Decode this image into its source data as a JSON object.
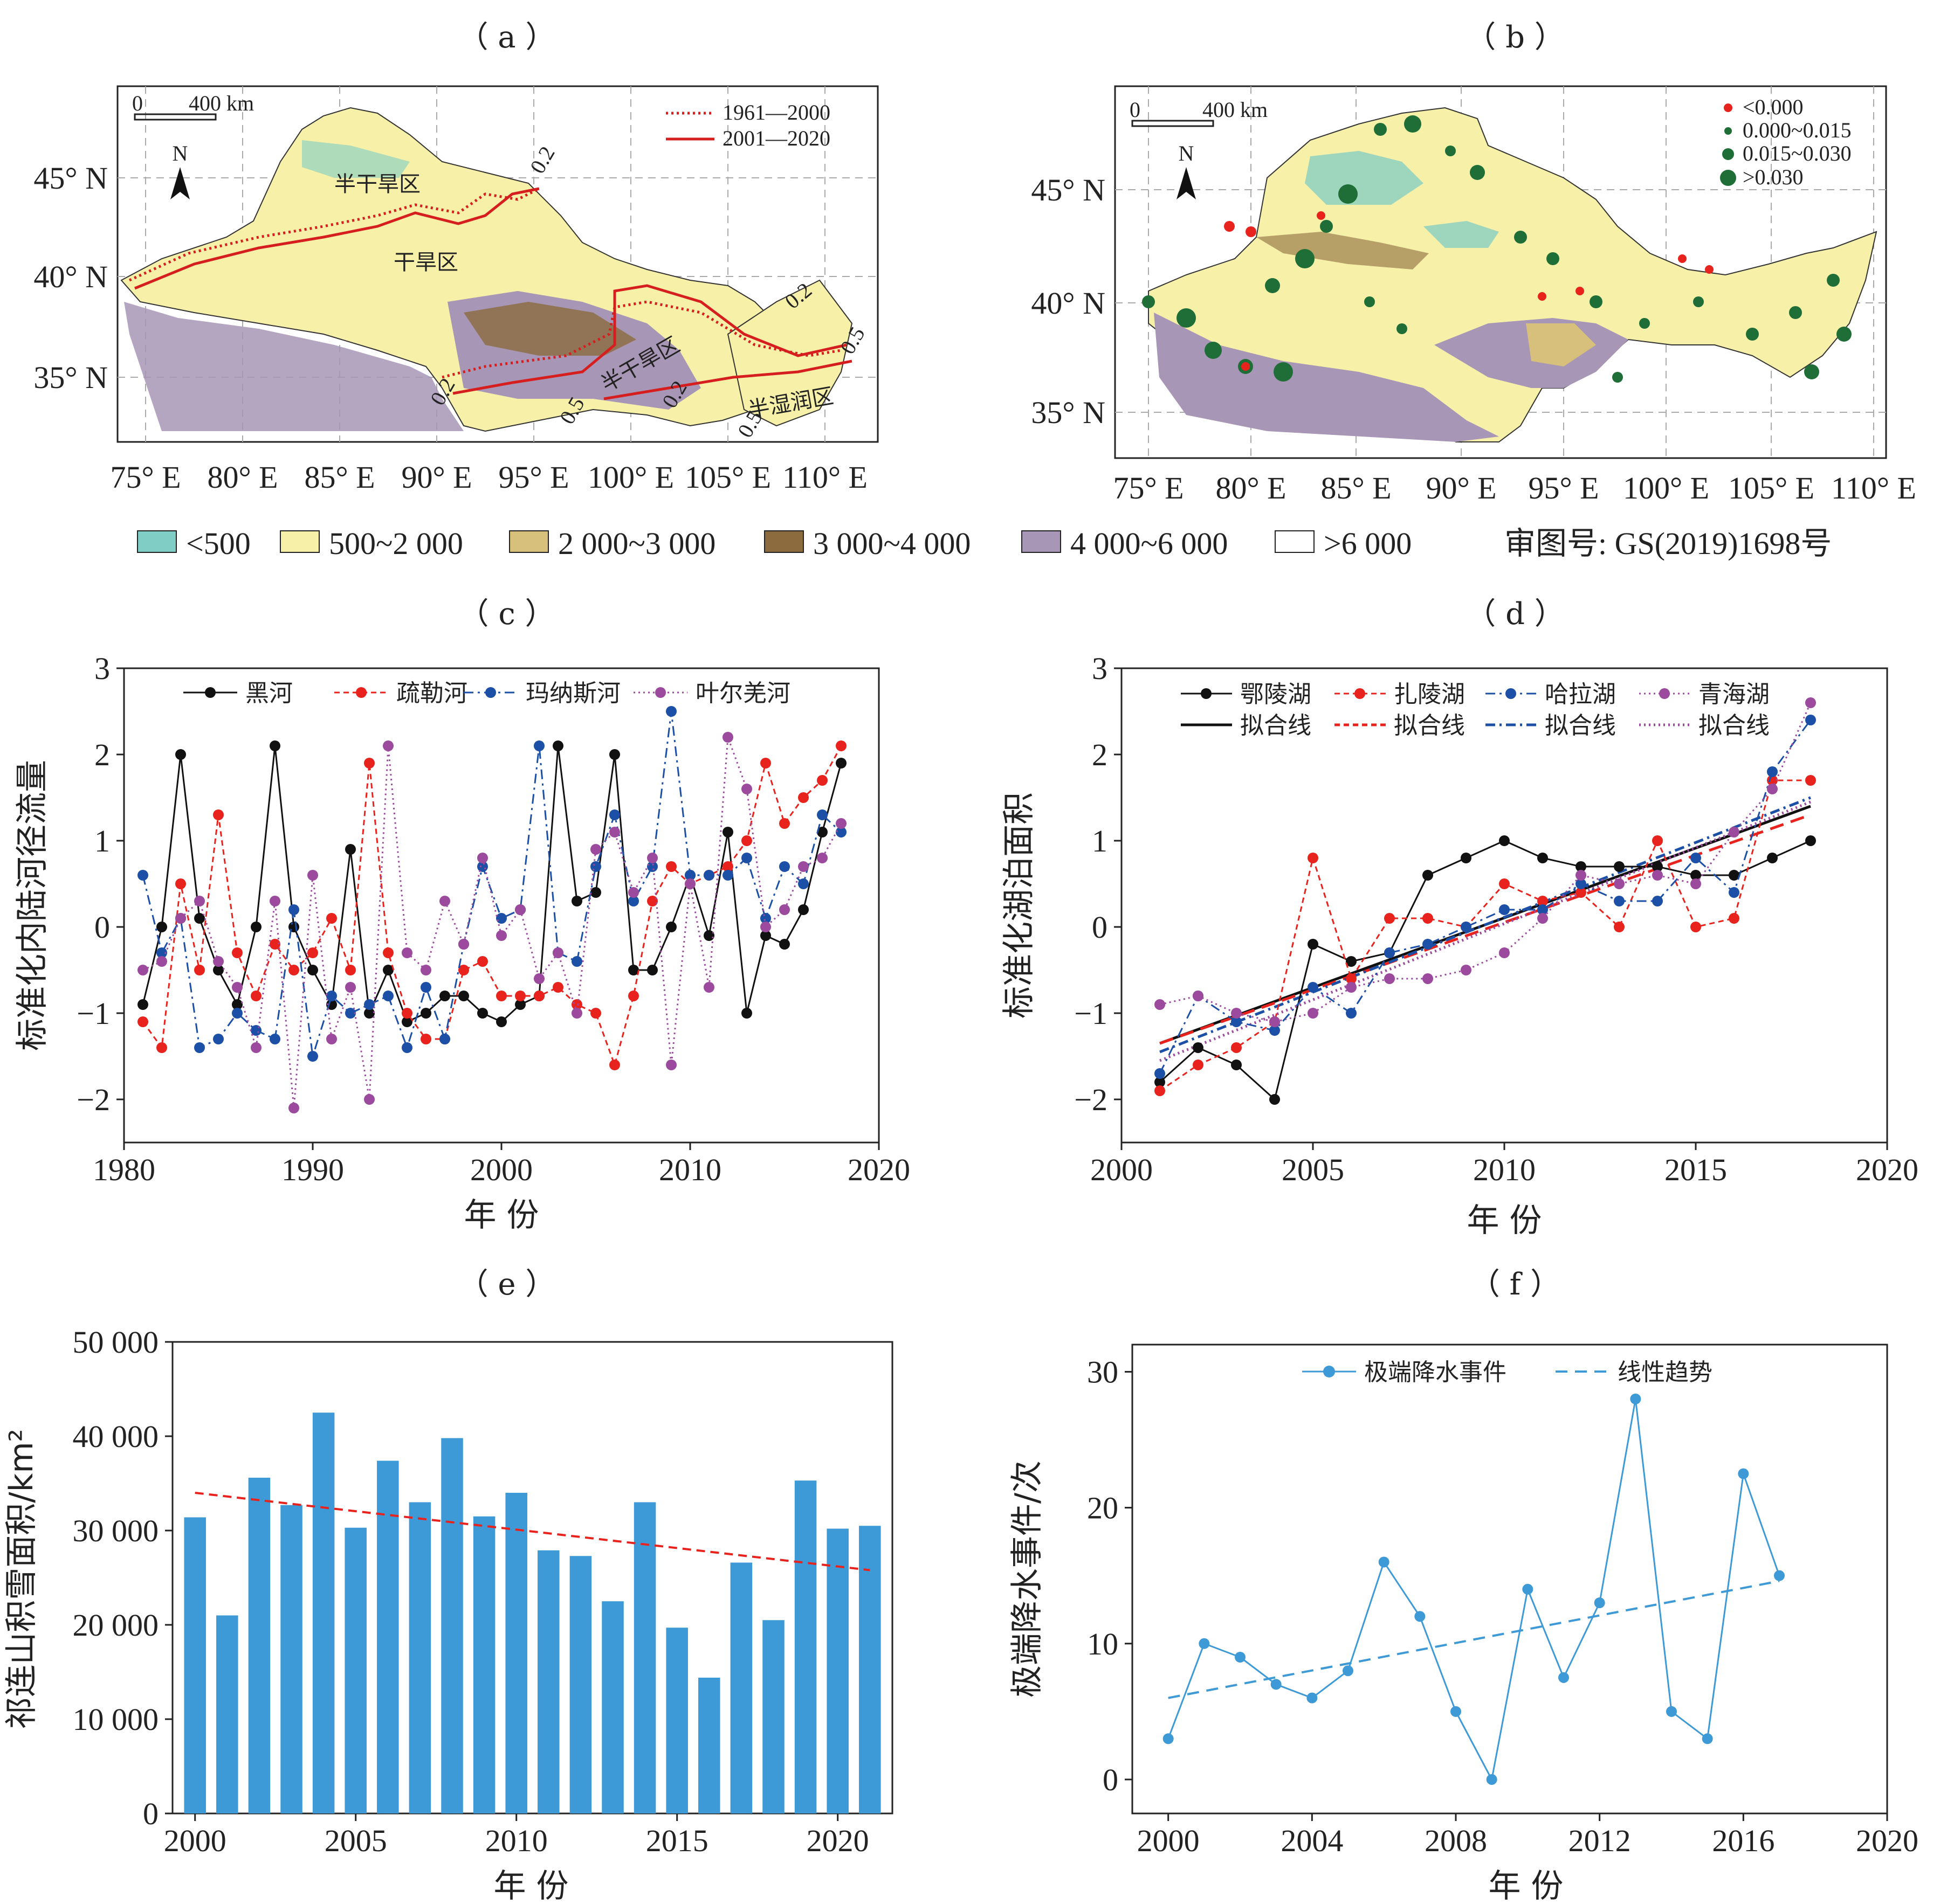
{
  "figure": {
    "panel_labels": [
      "（ a ）",
      "（ b ）",
      "（ c ）",
      "（ d ）",
      "（ e ）",
      "（ f ）"
    ]
  },
  "maps": {
    "lon_ticks": [
      "75° E",
      "80° E",
      "85° E",
      "90° E",
      "95° E",
      "100° E",
      "105° E",
      "110° E"
    ],
    "lat_ticks_a": [
      "45° N",
      "40° N",
      "35° N"
    ],
    "lat_ticks_b": [
      "45° N",
      "40° N",
      "35° N"
    ],
    "scale_label": "0",
    "scale_km": "400 km",
    "north": "N",
    "a_legend": [
      "1961—2000",
      "2001—2020"
    ],
    "a_zones": [
      "半干旱区",
      "干旱区",
      "半干旱区",
      "半湿润区"
    ],
    "a_isolines": [
      "0.2",
      "0.2",
      "0.2",
      "0.5",
      "0.5",
      "0.5",
      "0.2"
    ],
    "b_legend": [
      "<0.000",
      "0.000~0.015",
      "0.015~0.030",
      ">0.030"
    ],
    "elev_legend": [
      "<500",
      "500~2 000",
      "2 000~3 000",
      "3 000~4 000",
      "4 000~6 000",
      ">6 000"
    ],
    "elev_colors": [
      "#7fcdc4",
      "#f6f0a8",
      "#d6c07c",
      "#8c6b3e",
      "#a796b5",
      "#ffffff"
    ],
    "map_review": "审图号: GS(2019)1698号"
  },
  "chart_data": [
    {
      "id": "c",
      "type": "line",
      "ylabel": "标准化内陆河径流量",
      "xlabel": "年 份",
      "xlim": [
        1980,
        2020
      ],
      "ylim": [
        -2.5,
        3
      ],
      "xticks": [
        1980,
        1990,
        2000,
        2010,
        2020
      ],
      "yticks": [
        -2,
        -1,
        0,
        1,
        2,
        3
      ],
      "legend": "top",
      "x": [
        1981,
        1982,
        1983,
        1984,
        1985,
        1986,
        1987,
        1988,
        1989,
        1990,
        1991,
        1992,
        1993,
        1994,
        1995,
        1996,
        1997,
        1998,
        1999,
        2000,
        2001,
        2002,
        2003,
        2004,
        2005,
        2006,
        2007,
        2008,
        2009,
        2010,
        2011,
        2012,
        2013,
        2014,
        2015,
        2016,
        2017,
        2018
      ],
      "series": [
        {
          "name": "黑河",
          "color": "#111111",
          "dash": "",
          "values": [
            -0.9,
            0.0,
            2.0,
            0.1,
            -0.5,
            -0.9,
            0.0,
            2.1,
            0.0,
            -0.5,
            -0.9,
            0.9,
            -1.0,
            -0.5,
            -1.1,
            -1.0,
            -0.8,
            -0.8,
            -1.0,
            -1.1,
            -0.9,
            -0.8,
            2.1,
            0.3,
            0.4,
            2.0,
            -0.5,
            -0.5,
            0.0,
            0.6,
            -0.1,
            1.1,
            -1.0,
            -0.1,
            -0.2,
            0.2,
            1.1,
            1.9
          ]
        },
        {
          "name": "疏勒河",
          "color": "#e8231e",
          "dash": "10,7",
          "values": [
            -1.1,
            -1.4,
            0.5,
            -0.5,
            1.3,
            -0.3,
            -0.8,
            -0.2,
            -0.5,
            -0.3,
            0.1,
            -0.5,
            1.9,
            -0.3,
            -1.0,
            -1.3,
            -1.3,
            -0.5,
            -0.4,
            -0.8,
            -0.8,
            -0.8,
            -0.7,
            -0.9,
            -1.0,
            -1.6,
            -0.8,
            0.3,
            0.7,
            0.5,
            0.6,
            0.7,
            1.0,
            1.9,
            1.2,
            1.5,
            1.7,
            2.1
          ]
        },
        {
          "name": "玛纳斯河",
          "color": "#1c4fa6",
          "dash": "18,8,4,8",
          "values": [
            0.6,
            -0.3,
            0.1,
            -1.4,
            -1.3,
            -1.0,
            -1.2,
            -1.3,
            0.2,
            -1.5,
            -0.8,
            -1.0,
            -0.9,
            -0.8,
            -1.4,
            -0.7,
            -1.3,
            -0.2,
            0.7,
            0.1,
            0.2,
            2.1,
            -0.3,
            -0.4,
            0.7,
            1.3,
            0.3,
            0.7,
            2.5,
            0.6,
            0.6,
            0.6,
            0.8,
            0.1,
            0.7,
            0.5,
            1.3,
            1.1
          ]
        },
        {
          "name": "叶尔羌河",
          "color": "#9b4a9e",
          "dash": "3,6",
          "values": [
            -0.5,
            -0.4,
            0.1,
            0.3,
            -0.4,
            -0.7,
            -1.4,
            0.3,
            -2.1,
            0.6,
            -1.3,
            -0.7,
            -2.0,
            2.1,
            -0.3,
            -0.5,
            0.3,
            -0.2,
            0.8,
            -0.1,
            0.2,
            -0.6,
            -0.3,
            -1.0,
            0.9,
            1.1,
            0.4,
            0.8,
            -1.6,
            0.5,
            -0.7,
            2.2,
            1.6,
            0.0,
            0.2,
            0.7,
            0.8,
            1.2
          ]
        }
      ]
    },
    {
      "id": "d",
      "type": "line",
      "ylabel": "标准化湖泊面积",
      "xlabel": "年 份",
      "xlim": [
        2000,
        2020
      ],
      "ylim": [
        -2.5,
        3
      ],
      "xticks": [
        2000,
        2005,
        2010,
        2015,
        2020
      ],
      "yticks": [
        -2,
        -1,
        0,
        1,
        2,
        3
      ],
      "legend": "top",
      "fit_label": "拟合线",
      "x": [
        2001,
        2002,
        2003,
        2004,
        2005,
        2006,
        2007,
        2008,
        2009,
        2010,
        2011,
        2012,
        2013,
        2014,
        2015,
        2016,
        2017,
        2018
      ],
      "series": [
        {
          "name": "鄂陵湖",
          "color": "#111111",
          "dash": "",
          "fit": [
            -1.35,
            1.4
          ],
          "values": [
            -1.8,
            -1.4,
            -1.6,
            -2.0,
            -0.2,
            -0.4,
            -0.3,
            0.6,
            0.8,
            1.0,
            0.8,
            0.7,
            0.7,
            0.7,
            0.6,
            0.6,
            0.8,
            1.0
          ]
        },
        {
          "name": "扎陵湖",
          "color": "#e8231e",
          "dash": "10,7",
          "fit": [
            -1.35,
            1.3
          ],
          "values": [
            -1.9,
            -1.6,
            -1.4,
            -1.1,
            0.8,
            -0.6,
            0.1,
            0.1,
            0.0,
            0.5,
            0.3,
            0.4,
            0.0,
            1.0,
            0.0,
            0.1,
            1.7,
            1.7
          ]
        },
        {
          "name": "哈拉湖",
          "color": "#1c4fa6",
          "dash": "18,8,4,8",
          "fit": [
            -1.45,
            1.5
          ],
          "values": [
            -1.7,
            -0.8,
            -1.1,
            -1.2,
            -0.7,
            -1.0,
            -0.3,
            -0.2,
            0.0,
            0.2,
            0.2,
            0.5,
            0.3,
            0.3,
            0.8,
            0.4,
            1.8,
            2.4
          ]
        },
        {
          "name": "青海湖",
          "color": "#9b4a9e",
          "dash": "3,6",
          "fit": [
            -1.55,
            1.45
          ],
          "values": [
            -0.9,
            -0.8,
            -1.0,
            -1.1,
            -1.0,
            -0.7,
            -0.6,
            -0.6,
            -0.5,
            -0.3,
            0.1,
            0.6,
            0.5,
            0.6,
            0.5,
            1.1,
            1.6,
            2.6
          ]
        }
      ]
    },
    {
      "id": "e",
      "type": "bar",
      "ylabel": "祁连山积雪面积/km²",
      "xlabel": "年 份",
      "xlim": [
        1999.3,
        2021.7
      ],
      "ylim": [
        0,
        50000
      ],
      "xticks": [
        2000,
        2005,
        2010,
        2015,
        2020
      ],
      "yticks": [
        0,
        10000,
        20000,
        30000,
        40000,
        50000
      ],
      "ytick_labels": [
        "0",
        "10 000",
        "20 000",
        "30 000",
        "40 000",
        "50 000"
      ],
      "bar_color": "#3d9ad6",
      "trend_color": "#e8231e",
      "trend": [
        34000,
        25800
      ],
      "x": [
        2000,
        2001,
        2002,
        2003,
        2004,
        2005,
        2006,
        2007,
        2008,
        2009,
        2010,
        2011,
        2012,
        2013,
        2014,
        2015,
        2016,
        2017,
        2018,
        2019,
        2020,
        2021
      ],
      "values": [
        31400,
        21000,
        35600,
        32700,
        42500,
        30300,
        37400,
        33000,
        39800,
        31500,
        34000,
        27900,
        27300,
        22500,
        33000,
        19700,
        14400,
        26600,
        20500,
        35300,
        30200,
        30500
      ]
    },
    {
      "id": "f",
      "type": "line",
      "ylabel": "极端降水事件/次",
      "xlabel": "年 份",
      "xlim": [
        1999,
        2020
      ],
      "ylim": [
        -2.5,
        32
      ],
      "xticks": [
        2000,
        2004,
        2008,
        2012,
        2016,
        2020
      ],
      "yticks": [
        0,
        10,
        20,
        30
      ],
      "legend": "top",
      "color": "#3d9ad6",
      "series_name": "极端降水事件",
      "trend_name": "线性趋势",
      "trend": [
        6.0,
        14.6
      ],
      "x": [
        2000,
        2001,
        2002,
        2003,
        2004,
        2005,
        2006,
        2007,
        2008,
        2009,
        2010,
        2011,
        2012,
        2013,
        2014,
        2015,
        2016,
        2017
      ],
      "values": [
        3,
        10,
        9,
        7,
        6,
        8,
        16,
        12,
        5,
        0,
        14,
        7.5,
        13,
        28,
        5,
        3,
        22.5,
        15
      ]
    }
  ]
}
